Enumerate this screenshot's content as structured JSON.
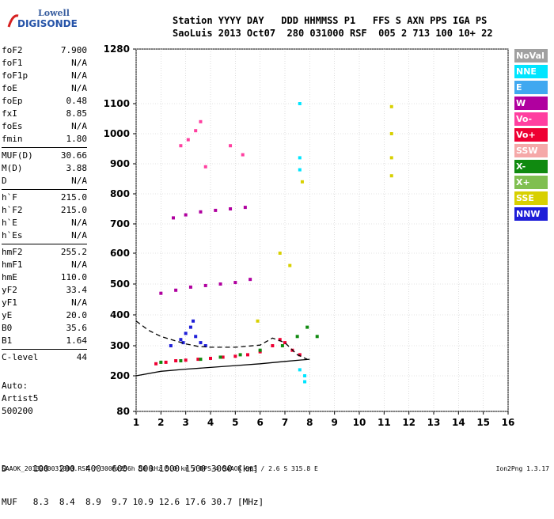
{
  "logo": {
    "line1": "Lowell",
    "line2": "DIGISONDE"
  },
  "header": {
    "row1": "Station YYYY DAY   DDD HHMMSS P1   FFS S AXN PPS IGA PS",
    "row2": "SaoLuis 2013 Oct07  280 031000 RSF  005 2 713 100 10+ 22"
  },
  "parameters": [
    {
      "label": "foF2",
      "value": "7.900"
    },
    {
      "label": "foF1",
      "value": "N/A"
    },
    {
      "label": "foF1p",
      "value": "N/A"
    },
    {
      "label": "foE",
      "value": "N/A"
    },
    {
      "label": "foEp",
      "value": "0.48"
    },
    {
      "label": "fxI",
      "value": "8.85"
    },
    {
      "label": "foEs",
      "value": "N/A"
    },
    {
      "label": "fmin",
      "value": "1.80"
    },
    {
      "label": "MUF(D)",
      "value": "30.66"
    },
    {
      "label": "M(D)",
      "value": "3.88"
    },
    {
      "label": "D",
      "value": "N/A"
    },
    {
      "label": "h`F",
      "value": "215.0"
    },
    {
      "label": "h`F2",
      "value": "215.0"
    },
    {
      "label": "h`E",
      "value": "N/A"
    },
    {
      "label": "h`Es",
      "value": "N/A"
    },
    {
      "label": "hmF2",
      "value": "255.2"
    },
    {
      "label": "hmF1",
      "value": "N/A"
    },
    {
      "label": "hmE",
      "value": "110.0"
    },
    {
      "label": "yF2",
      "value": "33.4"
    },
    {
      "label": "yF1",
      "value": "N/A"
    },
    {
      "label": "yE",
      "value": "20.0"
    },
    {
      "label": "B0",
      "value": "35.6"
    },
    {
      "label": "B1",
      "value": "1.64"
    },
    {
      "label": "C-level",
      "value": "44"
    }
  ],
  "auto": {
    "line1": "Auto:",
    "line2": "Artist5",
    "line3": "500200"
  },
  "legend": [
    {
      "label": "NoVal",
      "color": "#a0a0a0"
    },
    {
      "label": "NNE",
      "color": "#00e5ff"
    },
    {
      "label": "E",
      "color": "#40a8f0"
    },
    {
      "label": "W",
      "color": "#b0009f"
    },
    {
      "label": "Vo-",
      "color": "#ff3fa0"
    },
    {
      "label": "Vo+",
      "color": "#ee0033"
    },
    {
      "label": "SSW",
      "color": "#f5a8a8"
    },
    {
      "label": "X-",
      "color": "#108a10"
    },
    {
      "label": "X+",
      "color": "#80bf50"
    },
    {
      "label": "SSE",
      "color": "#d8d000"
    },
    {
      "label": "NNW",
      "color": "#1e1ed8"
    }
  ],
  "muf_table": {
    "d_row": "D     100  200  400  600  800 1000 1500 3000 [km]",
    "muf_row": "MUF   8.3  8.4  8.9  9.7 10.9 12.6 17.6 30.7 [MHz]"
  },
  "footer": {
    "left": "SAAOK_2013280031000.RSF / 300fx256h 50 kHz 5.0 km / DPS-4 SAAOK 903 / 2.6 S 315.8 E",
    "right": "Ion2Png 1.3.17"
  },
  "chart_data": {
    "type": "scatter",
    "x_ticks": [
      1,
      2,
      3,
      4,
      5,
      6,
      7,
      8,
      9,
      10,
      11,
      12,
      13,
      14,
      15,
      16
    ],
    "y_ticks": [
      80,
      200,
      300,
      400,
      500,
      600,
      700,
      800,
      900,
      1000,
      1100,
      1280
    ],
    "xlim": [
      1,
      16
    ],
    "ylim": [
      80,
      1280
    ],
    "y_scale": "nonlinear (virtual height, km)",
    "grid": true,
    "series": [
      {
        "color": "#ee0033",
        "points": [
          [
            1.8,
            240
          ],
          [
            2.2,
            245
          ],
          [
            2.6,
            250
          ],
          [
            3.0,
            252
          ],
          [
            3.5,
            255
          ],
          [
            4.0,
            258
          ],
          [
            4.5,
            262
          ],
          [
            5.0,
            265
          ],
          [
            5.5,
            270
          ],
          [
            6.0,
            280
          ],
          [
            6.5,
            300
          ],
          [
            6.8,
            320
          ],
          [
            7.0,
            310
          ],
          [
            7.3,
            285
          ],
          [
            7.6,
            270
          ]
        ]
      },
      {
        "color": "#1e1ed8",
        "points": [
          [
            2.4,
            300
          ],
          [
            2.8,
            320
          ],
          [
            3.0,
            340
          ],
          [
            3.2,
            360
          ],
          [
            3.4,
            330
          ],
          [
            3.6,
            310
          ],
          [
            3.8,
            300
          ],
          [
            3.3,
            380
          ],
          [
            2.9,
            310
          ]
        ]
      },
      {
        "color": "#108a10",
        "points": [
          [
            2.0,
            245
          ],
          [
            2.8,
            250
          ],
          [
            3.6,
            255
          ],
          [
            4.4,
            262
          ],
          [
            5.2,
            270
          ],
          [
            6.0,
            285
          ],
          [
            6.9,
            300
          ],
          [
            7.5,
            330
          ],
          [
            7.9,
            360
          ],
          [
            8.3,
            330
          ]
        ]
      },
      {
        "color": "#b0009f",
        "points": [
          [
            2.0,
            470
          ],
          [
            2.6,
            480
          ],
          [
            3.2,
            490
          ],
          [
            3.8,
            495
          ],
          [
            4.4,
            500
          ],
          [
            5.0,
            505
          ],
          [
            5.6,
            515
          ],
          [
            2.5,
            720
          ],
          [
            3.0,
            730
          ],
          [
            3.6,
            740
          ],
          [
            4.2,
            745
          ],
          [
            4.8,
            750
          ],
          [
            5.4,
            755
          ]
        ]
      },
      {
        "color": "#d8d000",
        "points": [
          [
            11.3,
            1090
          ],
          [
            11.3,
            1000
          ],
          [
            11.3,
            920
          ],
          [
            11.3,
            860
          ],
          [
            7.7,
            840
          ],
          [
            6.8,
            600
          ],
          [
            7.2,
            560
          ],
          [
            5.9,
            380
          ]
        ]
      },
      {
        "color": "#ff3fa0",
        "points": [
          [
            2.8,
            960
          ],
          [
            3.1,
            980
          ],
          [
            3.4,
            1010
          ],
          [
            3.6,
            1040
          ],
          [
            4.8,
            960
          ],
          [
            5.3,
            930
          ],
          [
            3.8,
            890
          ]
        ]
      },
      {
        "color": "#00e5ff",
        "points": [
          [
            7.6,
            1100
          ],
          [
            7.6,
            920
          ],
          [
            7.6,
            880
          ],
          [
            7.6,
            220
          ],
          [
            7.8,
            200
          ],
          [
            7.8,
            180
          ]
        ]
      }
    ],
    "lines": [
      {
        "style": "solid",
        "points": [
          [
            1.0,
            200
          ],
          [
            2.0,
            215
          ],
          [
            3.0,
            222
          ],
          [
            4.0,
            228
          ],
          [
            5.0,
            234
          ],
          [
            6.0,
            240
          ],
          [
            7.0,
            248
          ],
          [
            8.0,
            255
          ]
        ]
      },
      {
        "style": "dashed",
        "points": [
          [
            1.0,
            380
          ],
          [
            1.5,
            350
          ],
          [
            2.0,
            330
          ],
          [
            2.5,
            318
          ],
          [
            3.0,
            306
          ],
          [
            3.5,
            298
          ],
          [
            4.0,
            295
          ],
          [
            5.0,
            295
          ],
          [
            6.0,
            302
          ],
          [
            6.5,
            325
          ],
          [
            7.0,
            310
          ],
          [
            7.5,
            270
          ],
          [
            7.9,
            255
          ]
        ]
      }
    ]
  }
}
